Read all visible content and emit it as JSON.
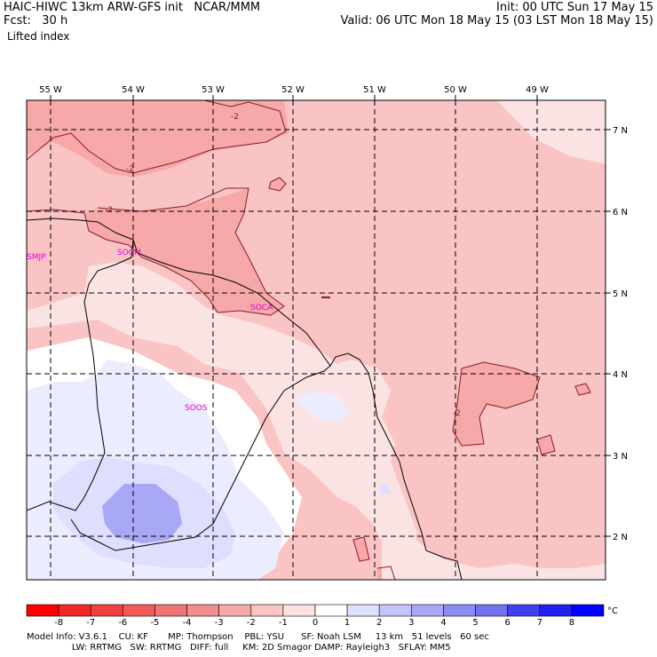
{
  "header": {
    "left_line1": "HAIC-HIWC 13km ARW-GFS init   NCAR/MMM",
    "left_line2": "Fcst:   30 h",
    "left_line3": "Lifted index",
    "right_line1": "Init: 00 UTC Sun 17 May 15",
    "right_line2": "Valid: 06 UTC Mon 18 May 15 (03 LST Mon 18 May 15)"
  },
  "map": {
    "lon_labels": [
      "55 W",
      "54 W",
      "53 W",
      "52 W",
      "51 W",
      "50 W",
      "49 W"
    ],
    "lat_labels": [
      "7 N",
      "6 N",
      "5 N",
      "4 N",
      "3 N",
      "2 N"
    ],
    "stations": [
      "SMJP",
      "SOCA",
      "SOCM",
      "SOOS"
    ],
    "contour_labels": [
      "-2",
      "-2",
      "-2",
      "-2"
    ]
  },
  "colorbar": {
    "ticks": [
      "-8",
      "-7",
      "-6",
      "-5",
      "-4",
      "-3",
      "-2",
      "-1",
      "0",
      "1",
      "2",
      "3",
      "4",
      "5",
      "6",
      "7",
      "8"
    ],
    "unit": "°C",
    "colors": [
      "#ff0000",
      "#f52626",
      "#f24040",
      "#f25959",
      "#f27373",
      "#f58c8c",
      "#f7a8a8",
      "#fac4c4",
      "#fce3e3",
      "#ffffff",
      "#dedeff",
      "#c4c4fa",
      "#a8a8f7",
      "#8c8cf5",
      "#7373f2",
      "#4040f2",
      "#2020f2",
      "#0000ff"
    ]
  },
  "footer": {
    "line1": "Model Info: V3.6.1    CU: KF       MP: Thompson    PBL: YSU      SF: Noah LSM     13 km   51 levels   60 sec",
    "line2": "                LW: RRTMG   SW: RRTMG   DIFF: full     KM: 2D Smagor DAMP: Rayleigh3   SFLAY: MM5"
  }
}
